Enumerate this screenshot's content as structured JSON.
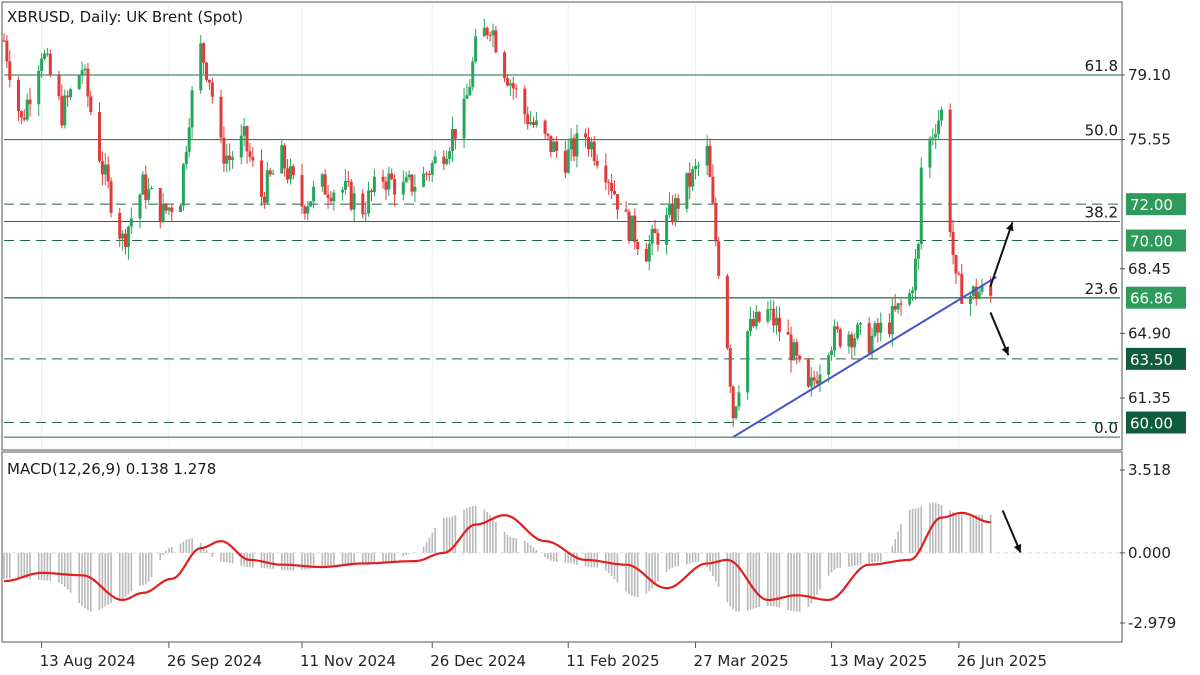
{
  "chart_data": [
    {
      "type": "candlestick",
      "title": "XBRUSD, Daily:  UK Brent (Spot)",
      "x_tick_labels": [
        "13 Aug 2024",
        "26 Sep 2024",
        "11 Nov 2024",
        "26 Dec 2024",
        "11 Feb 2025",
        "27 Mar 2025",
        "13 May 2025",
        "26 Jun 2025"
      ],
      "y_tick_labels": [
        "79.10",
        "75.55",
        "68.45",
        "64.90",
        "61.35"
      ],
      "ylim": [
        58.6,
        83.0
      ],
      "colors": {
        "up": "#26a65b",
        "down": "#e03a3a",
        "grid": "#dddddd",
        "level": "#1e6b4a",
        "trendline": "#4455cc"
      },
      "fibonacci": [
        {
          "label": "61.8",
          "value": 79.1
        },
        {
          "label": "50.0",
          "value": 75.55
        },
        {
          "label": "38.2",
          "value": 71.05
        },
        {
          "label": "23.6",
          "value": 66.85
        },
        {
          "label": "0.0",
          "value": 59.2
        }
      ],
      "price_levels": [
        {
          "label": "72.00",
          "value": 72.0,
          "style": "dashed"
        },
        {
          "label": "70.00",
          "value": 70.0,
          "style": "dashed"
        },
        {
          "label": "66.86",
          "value": 66.86,
          "style": "solid"
        },
        {
          "label": "63.50",
          "value": 63.5,
          "style": "dashed"
        },
        {
          "label": "60.00",
          "value": 60.0,
          "style": "dashed"
        }
      ],
      "trendline": [
        {
          "date": "2025-04-09",
          "price": 59.2
        },
        {
          "date": "2025-07-09",
          "price": 68.0
        }
      ],
      "arrows": [
        {
          "direction": "up",
          "target": 71.0
        },
        {
          "direction": "down",
          "target": 63.7
        }
      ],
      "series": [
        {
          "data": [
            [
              "2024-07-31",
              81.0
            ],
            [
              "2024-08-06",
              76.5
            ],
            [
              "2024-08-13",
              80.5
            ],
            [
              "2024-08-20",
              77.0
            ],
            [
              "2024-08-27",
              79.5
            ],
            [
              "2024-09-03",
              74.0
            ],
            [
              "2024-09-10",
              70.0
            ],
            [
              "2024-09-17",
              73.0
            ],
            [
              "2024-09-24",
              71.5
            ],
            [
              "2024-09-30",
              72.5
            ],
            [
              "2024-10-03",
              77.0
            ],
            [
              "2024-10-07",
              80.5
            ],
            [
              "2024-10-10",
              79.0
            ],
            [
              "2024-10-14",
              75.0
            ],
            [
              "2024-10-17",
              74.5
            ],
            [
              "2024-10-22",
              75.5
            ],
            [
              "2024-10-28",
              72.5
            ],
            [
              "2024-11-04",
              74.5
            ],
            [
              "2024-11-11",
              72.0
            ],
            [
              "2024-11-18",
              73.0
            ],
            [
              "2024-11-25",
              72.8
            ],
            [
              "2024-12-02",
              71.8
            ],
            [
              "2024-12-09",
              73.5
            ],
            [
              "2024-12-16",
              72.8
            ],
            [
              "2024-12-23",
              73.5
            ],
            [
              "2024-12-30",
              75.0
            ],
            [
              "2025-01-06",
              77.0
            ],
            [
              "2025-01-10",
              80.5
            ],
            [
              "2025-01-15",
              82.0
            ],
            [
              "2025-01-20",
              79.5
            ],
            [
              "2025-01-27",
              77.0
            ],
            [
              "2025-02-03",
              75.5
            ],
            [
              "2025-02-10",
              74.5
            ],
            [
              "2025-02-17",
              75.8
            ],
            [
              "2025-02-24",
              74.0
            ],
            [
              "2025-03-03",
              71.0
            ],
            [
              "2025-03-10",
              69.5
            ],
            [
              "2025-03-17",
              71.0
            ],
            [
              "2025-03-24",
              73.0
            ],
            [
              "2025-03-31",
              74.8
            ],
            [
              "2025-04-03",
              70.0
            ],
            [
              "2025-04-07",
              64.5
            ],
            [
              "2025-04-09",
              60.5
            ],
            [
              "2025-04-14",
              65.0
            ],
            [
              "2025-04-21",
              66.0
            ],
            [
              "2025-04-28",
              64.5
            ],
            [
              "2025-05-05",
              61.5
            ],
            [
              "2025-05-12",
              64.5
            ],
            [
              "2025-05-19",
              65.0
            ],
            [
              "2025-05-26",
              64.5
            ],
            [
              "2025-06-02",
              65.5
            ],
            [
              "2025-06-09",
              67.0
            ],
            [
              "2025-06-12",
              69.5
            ],
            [
              "2025-06-13",
              74.0
            ],
            [
              "2025-06-18",
              76.5
            ],
            [
              "2025-06-20",
              77.0
            ],
            [
              "2025-06-23",
              71.0
            ],
            [
              "2025-06-25",
              67.5
            ],
            [
              "2025-06-30",
              67.0
            ],
            [
              "2025-07-03",
              67.2
            ],
            [
              "2025-07-07",
              66.9
            ]
          ]
        }
      ],
      "ohlc_candles_drawn": "procedurally along the close path above",
      "last_price": 66.86
    },
    {
      "type": "line",
      "title": "MACD(12,26,9) 0.138 1.278",
      "y_tick_labels": [
        "3.518",
        "0.000",
        "-2.979"
      ],
      "ylim": [
        -3.7,
        4.2
      ],
      "colors": {
        "signal": "#e02020",
        "histogram": "#b8b8b8",
        "zero": "#dddddd"
      },
      "series": [
        {
          "name": "Signal",
          "data": [
            [
              "2024-07-31",
              -1.2
            ],
            [
              "2024-08-13",
              -0.85
            ],
            [
              "2024-08-27",
              -0.95
            ],
            [
              "2024-09-10",
              -2.0
            ],
            [
              "2024-09-17",
              -1.7
            ],
            [
              "2024-09-27",
              -1.1
            ],
            [
              "2024-10-07",
              0.2
            ],
            [
              "2024-10-14",
              0.5
            ],
            [
              "2024-10-24",
              -0.3
            ],
            [
              "2024-11-04",
              -0.5
            ],
            [
              "2024-11-18",
              -0.6
            ],
            [
              "2024-12-02",
              -0.45
            ],
            [
              "2024-12-20",
              -0.35
            ],
            [
              "2024-12-30",
              0.0
            ],
            [
              "2025-01-10",
              1.2
            ],
            [
              "2025-01-20",
              1.6
            ],
            [
              "2025-02-03",
              0.5
            ],
            [
              "2025-02-17",
              -0.3
            ],
            [
              "2025-03-03",
              -0.5
            ],
            [
              "2025-03-17",
              -1.5
            ],
            [
              "2025-03-31",
              -0.45
            ],
            [
              "2025-04-07",
              -0.3
            ],
            [
              "2025-04-21",
              -2.0
            ],
            [
              "2025-05-01",
              -1.8
            ],
            [
              "2025-05-12",
              -2.0
            ],
            [
              "2025-05-26",
              -0.5
            ],
            [
              "2025-06-09",
              -0.3
            ],
            [
              "2025-06-20",
              1.5
            ],
            [
              "2025-06-27",
              1.7
            ],
            [
              "2025-07-07",
              1.3
            ]
          ]
        }
      ],
      "histogram_drawn": "procedurally from signal",
      "macd_value": 0.138,
      "signal_value": 1.278
    }
  ]
}
